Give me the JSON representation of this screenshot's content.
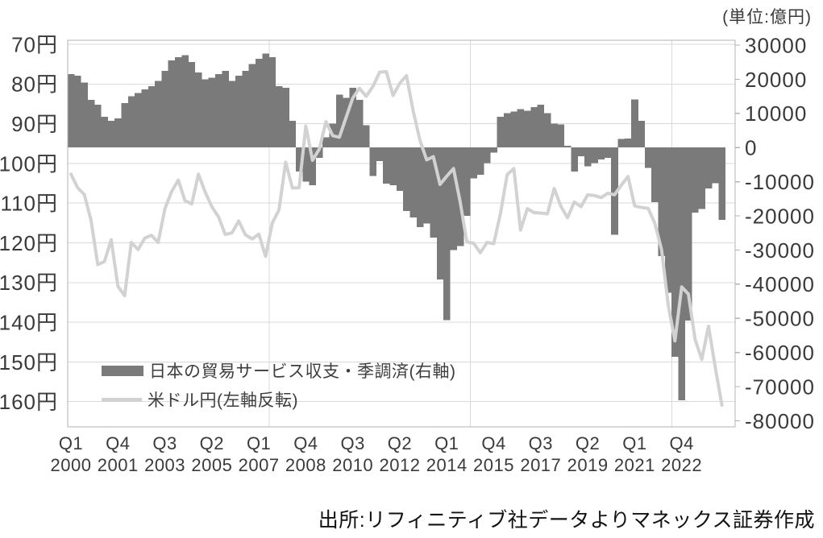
{
  "unit_label": "(単位:億円)",
  "source": "出所:リフィニティブ社データよりマネックス証券作成",
  "legend": [
    {
      "label": "日本の貿易サービス収支・季調済(右軸)",
      "swatch": "bar",
      "color": "#7a7a7a"
    },
    {
      "label": "米ドル円(左軸反転)",
      "swatch": "line",
      "color": "#d2d2d2"
    }
  ],
  "left_axis": {
    "title": "USD/JPY (yen, inverted)",
    "labels": [
      "70円",
      "80円",
      "90円",
      "100円",
      "110円",
      "120円",
      "130円",
      "140円",
      "150円",
      "160円"
    ],
    "min": 70,
    "max": 160,
    "step": 10,
    "inverted": true
  },
  "right_axis": {
    "title": "Trade and services balance (100 million yen)",
    "labels": [
      "30000",
      "20000",
      "10000",
      "0",
      "-10000",
      "-20000",
      "-30000",
      "-40000",
      "-50000",
      "-60000",
      "-70000",
      "-80000"
    ],
    "max": 30000,
    "min": -80000,
    "step": 10000
  },
  "x_axis": {
    "ticks": [
      {
        "quarter": "Q1",
        "year": "2000"
      },
      {
        "quarter": "Q4",
        "year": "2001"
      },
      {
        "quarter": "Q3",
        "year": "2003"
      },
      {
        "quarter": "Q2",
        "year": "2005"
      },
      {
        "quarter": "Q1",
        "year": "2007"
      },
      {
        "quarter": "Q4",
        "year": "2008"
      },
      {
        "quarter": "Q3",
        "year": "2010"
      },
      {
        "quarter": "Q2",
        "year": "2012"
      },
      {
        "quarter": "Q1",
        "year": "2014"
      },
      {
        "quarter": "Q4",
        "year": "2015"
      },
      {
        "quarter": "Q3",
        "year": "2017"
      },
      {
        "quarter": "Q2",
        "year": "2019"
      },
      {
        "quarter": "Q1",
        "year": "2021"
      },
      {
        "quarter": "Q4",
        "year": "2022"
      }
    ],
    "tick_spacing_quarters": 7
  },
  "colors": {
    "bar": "#7a7a7a",
    "line": "#d2d2d2",
    "grid": "#d9d9d9",
    "frame": "#b3b3b3",
    "axis_text": "#3a3a3a",
    "source_text": "#121212",
    "background": "#ffffff"
  },
  "chart_data": {
    "type": "combo",
    "start_period": "2000Q1",
    "end_period": "2024Q2",
    "frequency": "quarterly",
    "n_points": 98,
    "grid": "on",
    "legend_position": "inside-lower-left",
    "vertical_gridline_quarters": [
      30,
      60,
      90
    ],
    "series": [
      {
        "name": "日本の貿易サービス収支・季調済(右軸)",
        "type": "bar",
        "axis": "right",
        "unit": "億円",
        "values": [
          21500,
          21000,
          19000,
          14000,
          12500,
          9000,
          7800,
          8500,
          13000,
          15000,
          16000,
          17000,
          18000,
          19500,
          22500,
          25500,
          26500,
          27000,
          25000,
          22000,
          20000,
          20500,
          21500,
          22500,
          19500,
          21000,
          22500,
          24500,
          26000,
          27500,
          26500,
          18000,
          17500,
          7800,
          -7000,
          -10000,
          -11000,
          -3000,
          3000,
          7000,
          15500,
          14500,
          17500,
          14000,
          6500,
          -8300,
          -4000,
          -10600,
          -11000,
          -12700,
          -18600,
          -20500,
          -23300,
          -22200,
          -26400,
          -38600,
          -50600,
          -30000,
          -28800,
          -20000,
          -9000,
          -8000,
          -4500,
          -1500,
          9000,
          10100,
          10600,
          11300,
          10800,
          11800,
          12500,
          10100,
          7000,
          6800,
          500,
          -7000,
          -2500,
          -5500,
          -4500,
          -3500,
          -3000,
          -25500,
          2500,
          2600,
          14100,
          7800,
          -6000,
          -16000,
          -31800,
          -42500,
          -61300,
          -74000,
          -50700,
          -19000,
          -18000,
          -12000,
          -10500,
          -21200
        ]
      },
      {
        "name": "米ドル円(左軸反転)",
        "type": "line",
        "axis": "left_inverted",
        "unit": "円",
        "values": [
          102.7,
          106.1,
          107.9,
          114.4,
          125.5,
          124.7,
          119.2,
          131.0,
          133.3,
          119.9,
          121.7,
          118.8,
          118.1,
          119.9,
          111.4,
          107.1,
          104.2,
          109.4,
          110.2,
          102.7,
          107.2,
          110.9,
          113.5,
          117.9,
          117.5,
          114.5,
          118.0,
          119.0,
          117.8,
          123.4,
          115.0,
          111.7,
          99.7,
          106.2,
          106.1,
          90.6,
          99.2,
          96.4,
          89.5,
          93.0,
          93.4,
          88.4,
          83.5,
          81.1,
          83.1,
          80.6,
          77.0,
          76.9,
          82.9,
          79.8,
          77.9,
          86.8,
          94.2,
          99.1,
          98.3,
          105.3,
          103.2,
          101.3,
          109.7,
          119.8,
          120.1,
          122.5,
          119.9,
          120.2,
          112.6,
          102.8,
          101.3,
          116.8,
          111.4,
          112.4,
          112.5,
          112.7,
          106.3,
          110.8,
          113.7,
          109.7,
          110.9,
          107.9,
          108.1,
          108.6,
          107.5,
          107.9,
          105.5,
          103.3,
          110.7,
          111.1,
          111.3,
          115.1,
          121.7,
          135.7,
          144.7,
          131.1,
          132.9,
          144.3,
          149.4,
          141.0,
          151.3,
          160.9
        ]
      }
    ]
  }
}
